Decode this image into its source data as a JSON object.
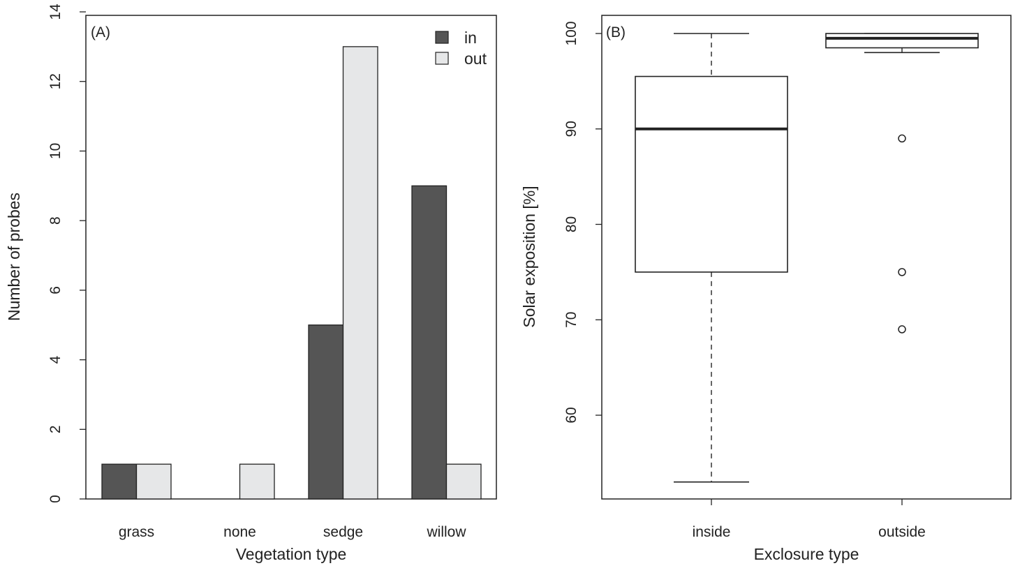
{
  "chart_data": [
    {
      "type": "bar",
      "panel_label": "(A)",
      "xlabel": "Vegetation type",
      "ylabel": "Number of probes",
      "categories": [
        "grass",
        "none",
        "sedge",
        "willow"
      ],
      "series": [
        {
          "name": "in",
          "values": [
            1,
            0,
            5,
            9
          ],
          "color": "#555555"
        },
        {
          "name": "out",
          "values": [
            1,
            1,
            13,
            1
          ],
          "color": "#e6e7e8"
        }
      ],
      "ylim": [
        0,
        14
      ],
      "yticks": [
        0,
        2,
        4,
        6,
        8,
        10,
        12,
        14
      ],
      "legend": {
        "placement": "top-right",
        "entries": [
          "in",
          "out"
        ]
      },
      "grid": false
    },
    {
      "type": "boxplot",
      "panel_label": "(B)",
      "xlabel": "Exclosure type",
      "ylabel": "Solar exposition [%]",
      "categories": [
        "inside",
        "outside"
      ],
      "boxes": [
        {
          "name": "inside",
          "whisker_low": 53,
          "q1": 75,
          "median": 90,
          "q3": 95.5,
          "whisker_high": 100,
          "outliers": []
        },
        {
          "name": "outside",
          "whisker_low": 98,
          "q1": 98.5,
          "median": 99.5,
          "q3": 100,
          "whisker_high": 100,
          "outliers": [
            89,
            75,
            69
          ]
        }
      ],
      "ylim": [
        51.2,
        102
      ],
      "yticks": [
        60,
        70,
        80,
        90,
        100
      ],
      "grid": false
    }
  ]
}
